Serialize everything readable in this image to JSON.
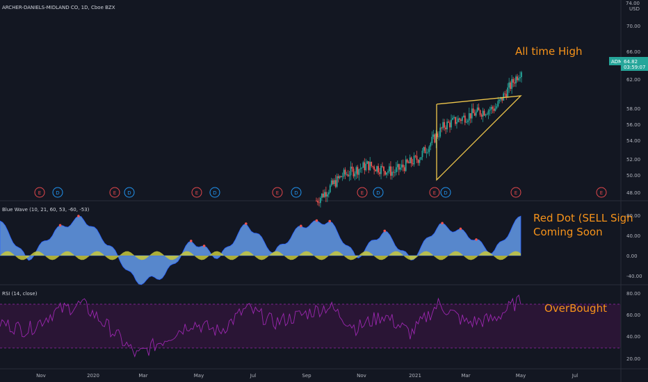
{
  "header": {
    "symbol_title": "ARCHER-DANIELS-MIDLAND CO, 1D, Cboe BZX",
    "currency_top": "74.00",
    "currency": "USD"
  },
  "price_label": {
    "ticker": "ADM",
    "price": "64.82",
    "countdown": "03:59:07"
  },
  "colors": {
    "background": "#131722",
    "up": "#26a69a",
    "down": "#ef5350",
    "triangle": "#f2c94c",
    "annotation": "#f7931a",
    "wave_blue": "#5b8dd6",
    "wave_yellow": "#c8c83a",
    "rsi": "#9c27b0",
    "rsi_band": "#2a1535",
    "earnings_red": "#e5484d",
    "dividend_blue": "#2196f3"
  },
  "panes": {
    "price": {
      "y_ticks": [
        "70.00",
        "66.00",
        "62.00",
        "58.00",
        "56.00",
        "54.00",
        "52.00",
        "50.00",
        "48.00"
      ]
    },
    "wave": {
      "title": "Blue Wave (10, 21, 60, 53, -60, -53)",
      "y_ticks": [
        "80.00",
        "40.00",
        "0.00",
        "-40.00"
      ]
    },
    "rsi": {
      "title": "RSI (14, close)",
      "y_ticks": [
        "80.00",
        "60.00",
        "40.00",
        "20.00"
      ]
    }
  },
  "x_labels": [
    "Nov",
    "2020",
    "Mar",
    "May",
    "Jul",
    "Sep",
    "Nov",
    "2021",
    "Mar",
    "May",
    "Jul"
  ],
  "earnings_markers": [
    {
      "type": "E"
    },
    {
      "type": "D"
    },
    {
      "type": "E"
    },
    {
      "type": "D"
    },
    {
      "type": "E"
    },
    {
      "type": "D"
    },
    {
      "type": "E"
    },
    {
      "type": "D"
    },
    {
      "type": "E"
    },
    {
      "type": "D"
    },
    {
      "type": "E"
    },
    {
      "type": "D"
    },
    {
      "type": "E"
    },
    {
      "type": "E"
    }
  ],
  "annotations": {
    "all_time_high": "All time High",
    "red_dot_line1": "Red Dot (SELL Sign",
    "red_dot_line2": "Coming Soon",
    "overbought": "OverBought"
  },
  "chart_data": {
    "type": "line",
    "price_series": {
      "x": [
        "2020-09",
        "2020-10",
        "2020-11",
        "2020-12",
        "2021-01",
        "2021-02",
        "2021-03",
        "2021-04",
        "2021-05"
      ],
      "values": [
        46.5,
        50.0,
        51.5,
        50.5,
        52.5,
        57.0,
        58.5,
        59.5,
        64.82
      ],
      "ylim": [
        47,
        74
      ]
    },
    "blue_wave": {
      "x": [
        "2019-10",
        "2019-11",
        "2019-12",
        "2020-01",
        "2020-02",
        "2020-03",
        "2020-04",
        "2020-05",
        "2020-06",
        "2020-07",
        "2020-08",
        "2020-09",
        "2020-10",
        "2020-11",
        "2020-12",
        "2021-01",
        "2021-02",
        "2021-03",
        "2021-04",
        "2021-05"
      ],
      "values": [
        70,
        -10,
        50,
        78,
        20,
        -55,
        -40,
        30,
        -5,
        65,
        5,
        60,
        70,
        -5,
        50,
        -10,
        62,
        45,
        5,
        80
      ],
      "ylim": [
        -55,
        90
      ]
    },
    "rsi": {
      "x": [
        "2019-10",
        "2019-11",
        "2019-12",
        "2020-01",
        "2020-02",
        "2020-03",
        "2020-04",
        "2020-05",
        "2020-06",
        "2020-07",
        "2020-08",
        "2020-09",
        "2020-10",
        "2020-11",
        "2020-12",
        "2021-01",
        "2021-02",
        "2021-03",
        "2021-04",
        "2021-05"
      ],
      "values": [
        55,
        48,
        65,
        72,
        50,
        25,
        40,
        55,
        47,
        68,
        55,
        62,
        70,
        50,
        62,
        45,
        72,
        55,
        58,
        76
      ],
      "ylim": [
        15,
        85
      ],
      "bands": [
        70,
        30
      ]
    }
  }
}
